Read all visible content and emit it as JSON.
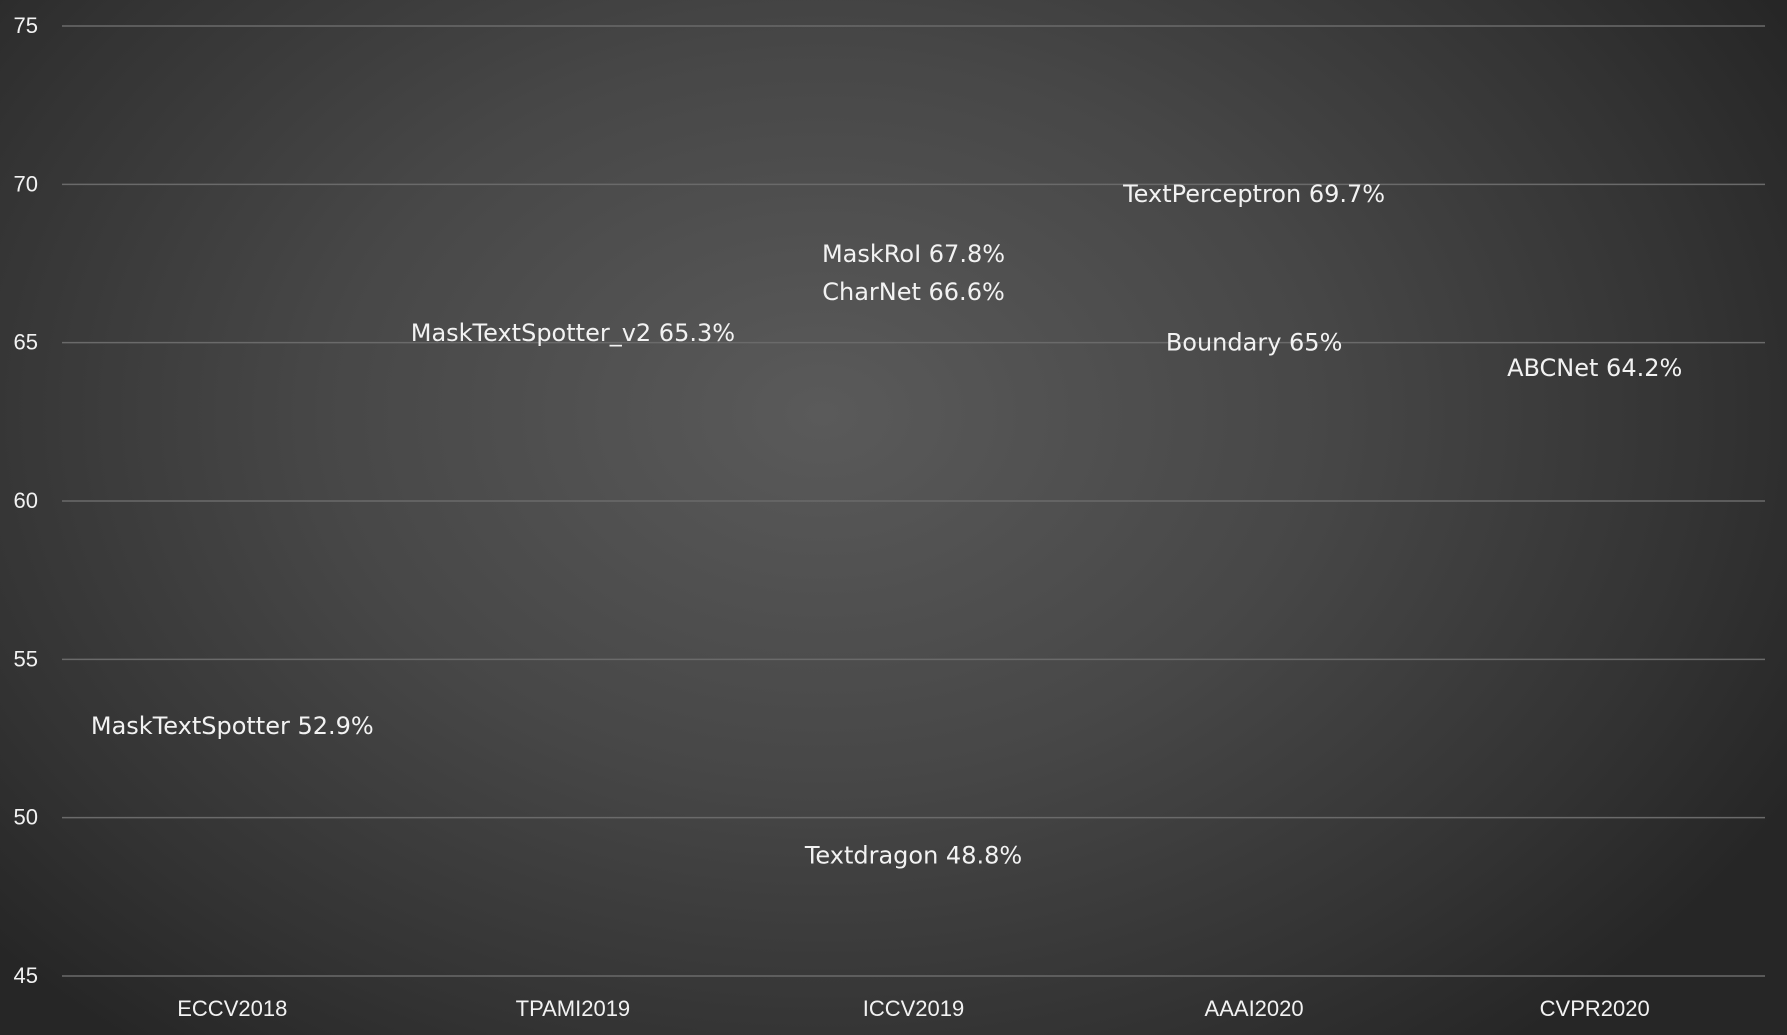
{
  "chart_data": {
    "type": "scatter",
    "title": "",
    "xlabel": "",
    "ylabel": "",
    "ylim": [
      45,
      75
    ],
    "y_ticks": [
      45,
      50,
      55,
      60,
      65,
      70,
      75
    ],
    "categories": [
      "ECCV2018",
      "TPAMI2019",
      "ICCV2019",
      "AAAI2020",
      "CVPR2020"
    ],
    "grid": true,
    "legend": "none",
    "points": [
      {
        "category": "ECCV2018",
        "label": "MaskTextSpotter 52.9%",
        "value": 52.9
      },
      {
        "category": "TPAMI2019",
        "label": "MaskTextSpotter_v2 65.3%",
        "value": 65.3
      },
      {
        "category": "ICCV2019",
        "label": "MaskRoI 67.8%",
        "value": 67.8
      },
      {
        "category": "ICCV2019",
        "label": "CharNet 66.6%",
        "value": 66.6
      },
      {
        "category": "ICCV2019",
        "label": "Textdragon 48.8%",
        "value": 48.8
      },
      {
        "category": "AAAI2020",
        "label": "TextPerceptron 69.7%",
        "value": 69.7
      },
      {
        "category": "AAAI2020",
        "label": "Boundary 65%",
        "value": 65
      },
      {
        "category": "CVPR2020",
        "label": "ABCNet 64.2%",
        "value": 64.2
      }
    ],
    "colors": {
      "text": "#f2f2f2",
      "gridline": "#6a6a6a",
      "background_center": "#5a5a5a",
      "background_edge": "#262626"
    }
  }
}
